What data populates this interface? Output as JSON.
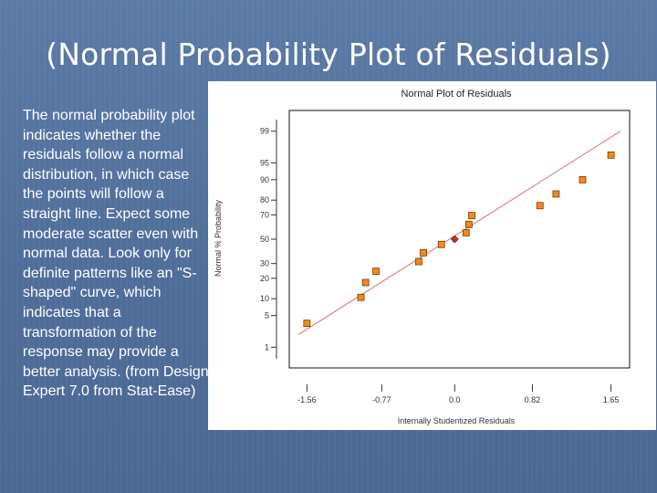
{
  "slide": {
    "title": "(Normal Probability Plot of Residuals)",
    "body": "The normal probability plot indicates whether the residuals follow a normal distribution, in which case the points will follow a straight line. Expect some moderate scatter even with normal data. Look only for definite patterns like an \"S-shaped\" curve, which indicates that a transformation of the response may provide a better analysis. (from Design Expert 7.0 from Stat-Ease)"
  },
  "colors": {
    "point_fill": "#f08a1e",
    "point_stroke": "#7a3c00",
    "center_point": "#b03a2e",
    "fit_line": "#e07070"
  },
  "chart_data": {
    "type": "scatter",
    "title": "Normal Plot of Residuals",
    "xlabel": "Internally Studentized Residuals",
    "ylabel": "Normal % Probability",
    "x_ticks": [
      -1.56,
      -0.77,
      0.0,
      0.82,
      1.65
    ],
    "x_tick_labels": [
      "-1.56",
      "-0.77",
      "0.0",
      "0.82",
      "1.65"
    ],
    "y_ticks": [
      1,
      5,
      10,
      20,
      30,
      50,
      70,
      80,
      90,
      95,
      99
    ],
    "y_tick_labels": [
      "1",
      "5",
      "10",
      "20",
      "30",
      "50",
      "70",
      "80",
      "90",
      "95",
      "99"
    ],
    "xlim": [
      -1.65,
      1.75
    ],
    "ylim": [
      0.5,
      99.5
    ],
    "grid": false,
    "points": [
      {
        "x": -1.56,
        "y": 3.5
      },
      {
        "x": -0.99,
        "y": 10.5
      },
      {
        "x": -0.94,
        "y": 17.5
      },
      {
        "x": -0.83,
        "y": 24.5
      },
      {
        "x": -0.38,
        "y": 31.5
      },
      {
        "x": -0.33,
        "y": 38.5
      },
      {
        "x": -0.14,
        "y": 45.5
      },
      {
        "x": 0.0,
        "y": 50.0,
        "center": true
      },
      {
        "x": 0.12,
        "y": 55.5
      },
      {
        "x": 0.15,
        "y": 62.5
      },
      {
        "x": 0.18,
        "y": 69.5
      },
      {
        "x": 0.9,
        "y": 76.5
      },
      {
        "x": 1.07,
        "y": 83.5
      },
      {
        "x": 1.35,
        "y": 90.0
      },
      {
        "x": 1.65,
        "y": 96.5
      }
    ],
    "fit_line": {
      "x": [
        -1.65,
        1.75
      ],
      "y": [
        2.0,
        99.0
      ]
    }
  }
}
